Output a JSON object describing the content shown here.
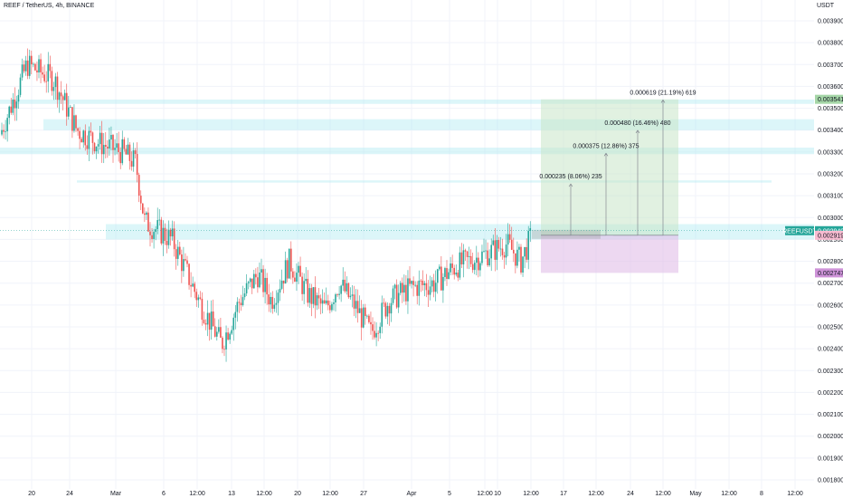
{
  "header": {
    "symbol_title": "REEF / TetherUS, 4h, BINANCE",
    "price_unit": "USDT"
  },
  "colors": {
    "up": "#26a69a",
    "down": "#ef5350",
    "zone": "#b2ebf2",
    "target": "#c8e6c9",
    "stop": "#e1bee7",
    "grid": "#f0f3fa"
  },
  "chart_data": {
    "type": "candlestick",
    "title": "REEF / TetherUS, 4h, BINANCE",
    "ylim": [
      0.0018,
      0.004
    ],
    "y_ticks": [
      "0.003900",
      "0.003800",
      "0.003700",
      "0.003600",
      "0.003500",
      "0.003400",
      "0.003300",
      "0.003200",
      "0.003100",
      "0.003000",
      "0.002900",
      "0.002800",
      "0.002700",
      "0.002600",
      "0.002500",
      "0.002400",
      "0.002300",
      "0.002200",
      "0.002100",
      "0.002000",
      "0.001900",
      "0.001800"
    ],
    "x_ticks": [
      "20",
      "24",
      "Mar",
      "6",
      "12:00",
      "13",
      "12:00",
      "20",
      "12:00",
      "27",
      "Apr",
      "5",
      "12:00",
      "10",
      "12:00",
      "17",
      "12:00",
      "24",
      "12:00",
      "May",
      "12:00",
      "8",
      "12:00"
    ],
    "grid": true,
    "close_path": [
      [
        0,
        0.00338
      ],
      [
        30,
        0.0037
      ],
      [
        60,
        0.00363
      ],
      [
        85,
        0.0034
      ],
      [
        110,
        0.00334
      ],
      [
        135,
        0.0033
      ],
      [
        150,
        0.00325
      ],
      [
        160,
        0.00298
      ],
      [
        190,
        0.0029
      ],
      [
        220,
        0.00262
      ],
      [
        245,
        0.00242
      ],
      [
        265,
        0.00262
      ],
      [
        285,
        0.00274
      ],
      [
        300,
        0.00262
      ],
      [
        320,
        0.0028
      ],
      [
        340,
        0.00265
      ],
      [
        360,
        0.00258
      ],
      [
        375,
        0.0027
      ],
      [
        395,
        0.00258
      ],
      [
        410,
        0.00247
      ],
      [
        430,
        0.00262
      ],
      [
        455,
        0.00268
      ],
      [
        480,
        0.0027
      ],
      [
        505,
        0.00278
      ],
      [
        530,
        0.00282
      ],
      [
        560,
        0.00288
      ],
      [
        576,
        0.0028
      ],
      [
        590,
        0.00294
      ]
    ],
    "zones": [
      {
        "from": 0.00352,
        "to": 0.00354
      },
      {
        "from": 0.0034,
        "to": 0.00345
      },
      {
        "from": 0.00329,
        "to": 0.00332
      },
      {
        "from": 0.00316,
        "to": 0.00317
      },
      {
        "from": 0.0029,
        "to": 0.00297
      }
    ],
    "position": {
      "entry": 0.002919,
      "target": 0.003541,
      "stop": 0.002747
    },
    "targets": [
      {
        "price": 0.003154,
        "label": "0.000235 (8.06%) 235"
      },
      {
        "price": 0.003294,
        "label": "0.000375 (12.86%) 375"
      },
      {
        "price": 0.003399,
        "label": "0.000480 (16.46%) 480"
      },
      {
        "price": 0.003538,
        "label": "0.000619 (21.19%) 619"
      }
    ],
    "price_tags": [
      {
        "kind": "symbol",
        "symbol": "REEFUSDT",
        "value": "0.002940",
        "price": 0.00294
      },
      {
        "kind": "entry",
        "value": "0.002919",
        "price": 0.002919
      },
      {
        "kind": "target",
        "value": "0.003541",
        "price": 0.003541
      },
      {
        "kind": "stop",
        "value": "0.002747",
        "price": 0.002747
      }
    ]
  }
}
